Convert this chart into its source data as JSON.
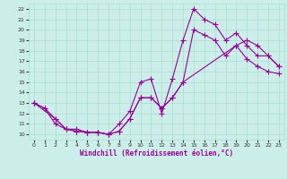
{
  "xlabel": "Windchill (Refroidissement éolien,°C)",
  "bg_color": "#cceee8",
  "grid_color": "#aaddcc",
  "line_color": "#990099",
  "xlim": [
    -0.5,
    23.5
  ],
  "ylim": [
    9.5,
    22.5
  ],
  "xticks": [
    0,
    1,
    2,
    3,
    4,
    5,
    6,
    7,
    8,
    9,
    10,
    11,
    12,
    13,
    14,
    15,
    16,
    17,
    18,
    19,
    20,
    21,
    22,
    23
  ],
  "yticks": [
    10,
    11,
    12,
    13,
    14,
    15,
    16,
    17,
    18,
    19,
    20,
    21,
    22
  ],
  "line1_x": [
    0,
    1,
    2,
    3,
    4,
    5,
    6,
    7,
    8,
    9,
    10,
    11,
    12,
    13,
    14,
    15,
    16,
    17,
    18,
    19,
    20,
    21,
    22,
    23
  ],
  "line1_y": [
    13,
    12.5,
    11,
    10.5,
    10.5,
    10.2,
    10.2,
    10.0,
    11.0,
    12.2,
    15.0,
    15.3,
    12.0,
    15.3,
    19.0,
    22.0,
    21.0,
    20.5,
    19.0,
    19.7,
    18.5,
    17.5,
    17.5,
    16.5
  ],
  "line2_x": [
    0,
    1,
    2,
    3,
    4,
    5,
    6,
    7,
    8,
    9,
    10,
    11,
    12,
    13,
    14,
    15,
    16,
    17,
    18,
    19,
    20,
    21,
    22,
    23
  ],
  "line2_y": [
    13.0,
    12.5,
    11.5,
    10.5,
    10.3,
    10.2,
    10.2,
    10.0,
    10.3,
    11.5,
    13.5,
    13.5,
    12.5,
    13.5,
    15.0,
    20.0,
    19.5,
    19.0,
    17.5,
    18.5,
    17.2,
    16.5,
    16.0,
    15.8
  ],
  "line3_x": [
    0,
    2,
    3,
    4,
    5,
    6,
    7,
    8,
    9,
    10,
    11,
    12,
    13,
    14,
    19,
    20,
    21,
    22,
    23
  ],
  "line3_y": [
    13.0,
    11.5,
    10.5,
    10.3,
    10.2,
    10.2,
    10.0,
    10.3,
    11.5,
    13.5,
    13.5,
    12.5,
    13.5,
    15.0,
    18.5,
    19.0,
    18.5,
    17.5,
    16.5
  ]
}
